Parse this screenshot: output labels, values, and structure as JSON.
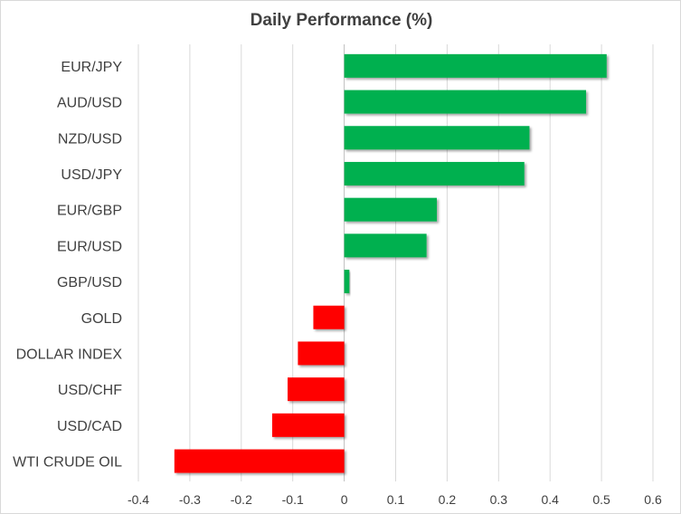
{
  "chart_data": {
    "type": "bar",
    "orientation": "horizontal",
    "title": "Daily Performance (%)",
    "xlabel": "",
    "ylabel": "",
    "categories": [
      "EUR/JPY",
      "AUD/USD",
      "NZD/USD",
      "USD/JPY",
      "EUR/GBP",
      "EUR/USD",
      "GBP/USD",
      "GOLD",
      "DOLLAR INDEX",
      "USD/CHF",
      "USD/CAD",
      "WTI CRUDE OIL"
    ],
    "values": [
      0.51,
      0.47,
      0.36,
      0.35,
      0.18,
      0.16,
      0.01,
      -0.06,
      -0.09,
      -0.11,
      -0.14,
      -0.33
    ],
    "xlim": [
      -0.4,
      0.6
    ],
    "xticks": [
      -0.4,
      -0.3,
      -0.2,
      -0.1,
      0,
      0.1,
      0.2,
      0.3,
      0.4,
      0.5,
      0.6
    ],
    "xtick_labels": [
      "-0.4",
      "-0.3",
      "-0.2",
      "-0.1",
      "0",
      "0.1",
      "0.2",
      "0.3",
      "0.4",
      "0.5",
      "0.6"
    ],
    "grid": "vertical",
    "legend": "none",
    "colors": {
      "positive": "#00b050",
      "negative": "#ff0000",
      "grid": "#d9d9d9",
      "text": "#404040"
    }
  }
}
